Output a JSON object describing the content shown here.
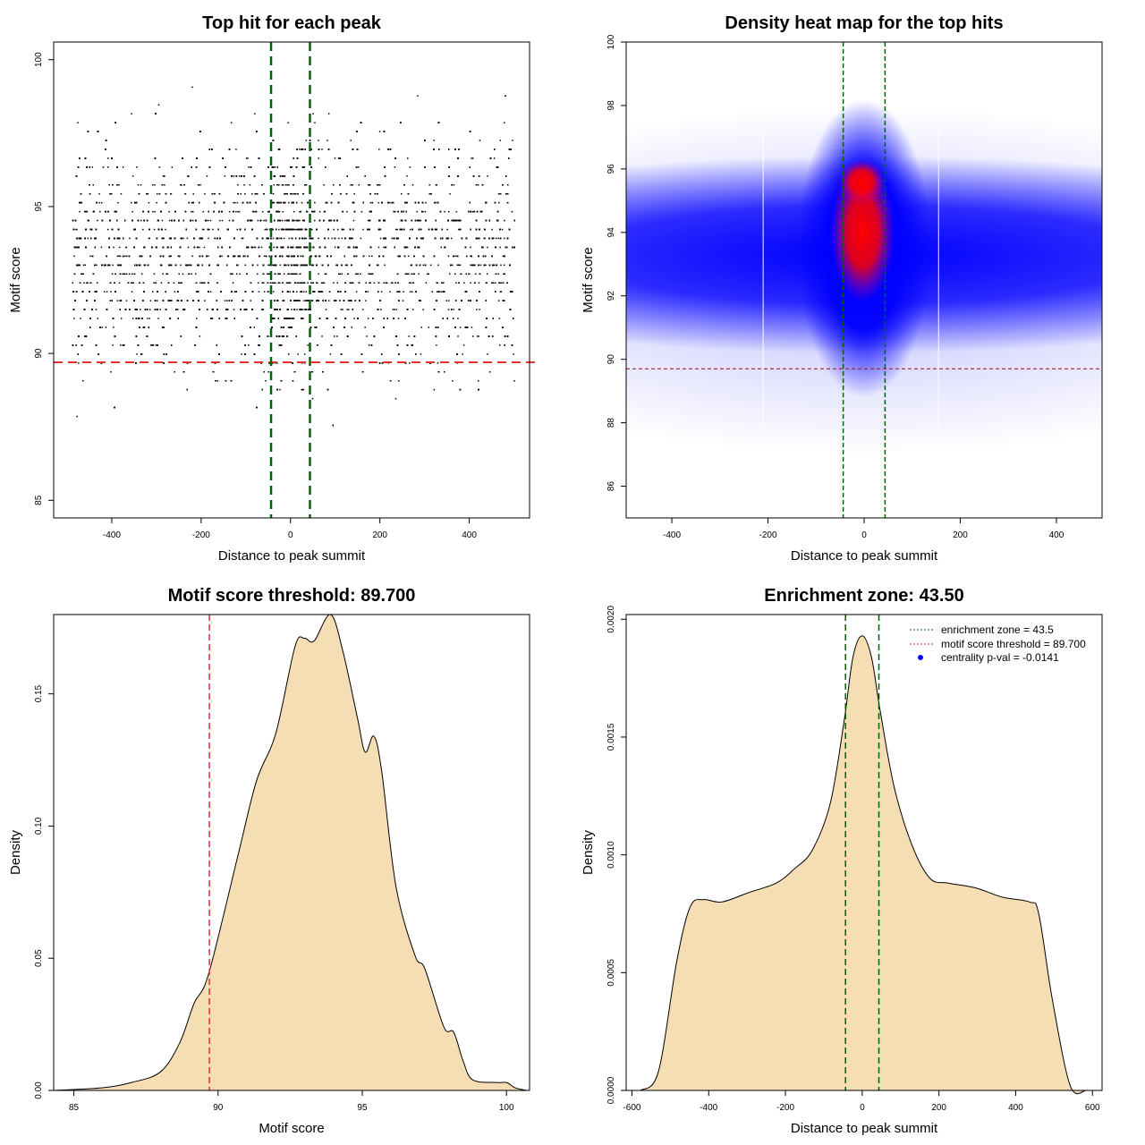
{
  "colors": {
    "scatter_point": "#000000",
    "enrichment_line": "#006400",
    "threshold_line": "#e03030",
    "density_fill": "#f5deb3",
    "heat_low": "#ffffff",
    "heat_mid": "#0000ff",
    "heat_high": "#ff0000",
    "pval_marker": "#0000ff"
  },
  "chart_data": [
    {
      "type": "scatter",
      "title": "Top hit for each peak",
      "xlabel": "Distance to peak summit",
      "ylabel": "Motif score",
      "xlim": [
        -530,
        535
      ],
      "ylim": [
        84.4,
        100.6
      ],
      "xticks": [
        -400,
        -200,
        0,
        200,
        400
      ],
      "yticks": [
        85,
        90,
        95,
        100
      ],
      "point_x_range": [
        -490,
        500
      ],
      "point_y_range": [
        85,
        100
      ],
      "vlines": [
        -43.5,
        43.5
      ],
      "hline": 89.7,
      "grid": false
    },
    {
      "type": "heatmap",
      "title": "Density heat map for the top hits",
      "xlabel": "Distance to peak summit",
      "ylabel": "Motif score",
      "xlim": [
        -495,
        495
      ],
      "ylim": [
        85,
        100
      ],
      "xticks": [
        -400,
        -200,
        0,
        200,
        400
      ],
      "yticks": [
        86,
        88,
        90,
        92,
        94,
        96,
        98,
        100
      ],
      "density_peak": {
        "x": 0,
        "y": 94
      },
      "vlines": [
        -43.5,
        43.5
      ],
      "hline": 89.7,
      "grid": false
    },
    {
      "type": "area",
      "title": "Motif score threshold: 89.700",
      "xlabel": "Motif score",
      "ylabel": "Density",
      "xlim": [
        84.3,
        100.8
      ],
      "ylim": [
        0,
        0.18
      ],
      "xticks": [
        85,
        90,
        95,
        100
      ],
      "yticks": [
        "0.00",
        "0.05",
        "0.10",
        "0.15"
      ],
      "x": [
        84.33,
        86,
        87,
        88,
        88.67,
        89.17,
        89.67,
        90.67,
        91.33,
        92,
        92.67,
        93,
        93.33,
        93.9,
        94.33,
        94.83,
        95.1,
        95.4,
        95.67,
        96.17,
        96.83,
        97.17,
        97.83,
        98.17,
        98.5,
        98.83,
        99.67,
        100,
        100.3,
        100.7
      ],
      "y": [
        0,
        0.001,
        0.003,
        0.007,
        0.018,
        0.033,
        0.044,
        0.088,
        0.117,
        0.135,
        0.168,
        0.171,
        0.17,
        0.18,
        0.166,
        0.141,
        0.128,
        0.134,
        0.121,
        0.077,
        0.051,
        0.046,
        0.024,
        0.022,
        0.011,
        0.004,
        0.003,
        0.003,
        0.001,
        0
      ],
      "vline": 89.7,
      "grid": false
    },
    {
      "type": "area",
      "title": "Enrichment zone: 43.50",
      "xlabel": "Distance to peak summit",
      "ylabel": "Density",
      "xlim": [
        -615,
        625
      ],
      "ylim": [
        0,
        0.00202
      ],
      "xticks": [
        -600,
        -400,
        -200,
        0,
        200,
        400,
        600
      ],
      "yticks": [
        "0.0000",
        "0.0005",
        "0.0010",
        "0.0015",
        "0.0020"
      ],
      "x": [
        -578,
        -531,
        -483,
        -448,
        -413,
        -366,
        -295,
        -224,
        -177,
        -130,
        -83,
        -47,
        -24,
        0,
        24,
        47,
        83,
        130,
        177,
        224,
        295,
        366,
        436,
        460,
        495,
        542,
        583
      ],
      "y": [
        0,
        8e-05,
        0.00055,
        0.00078,
        0.00081,
        0.0008,
        0.00084,
        0.00088,
        0.00094,
        0.00102,
        0.00122,
        0.00157,
        0.00184,
        0.00193,
        0.00184,
        0.00161,
        0.00129,
        0.00104,
        0.0009,
        0.00088,
        0.00086,
        0.00082,
        0.0008,
        0.00075,
        0.00039,
        2e-05,
        0
      ],
      "vlines": [
        -43.5,
        43.5
      ],
      "legend": {
        "placement": "top-right",
        "entries": [
          "enrichment zone = 43.5",
          "motif score threshold = 89.700",
          "centrality p-val = -0.0141"
        ]
      },
      "grid": false
    }
  ]
}
